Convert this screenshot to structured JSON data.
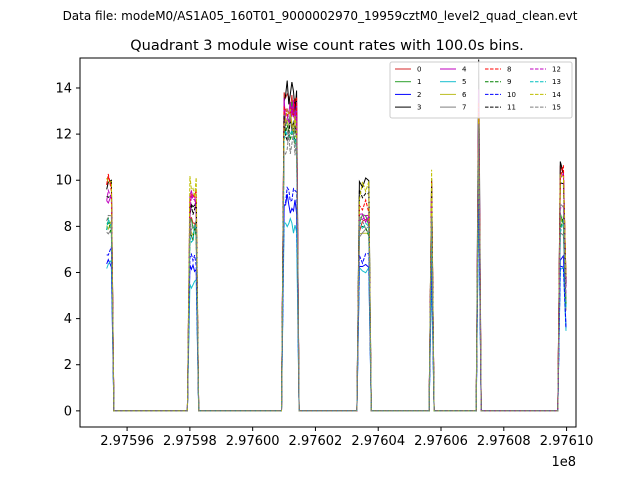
{
  "chart_data": {
    "type": "line",
    "suptitle": "Data file: modeM0/AS1A05_160T01_9000002970_19959cztM0_level2_quad_clean.evt",
    "title": "Quadrant 3 module wise count rates with 100.0s bins.",
    "xlabel": "",
    "ylabel": "",
    "x_offset_label": "1e8",
    "xlim": [
      2.975945,
      2.976103
    ],
    "ylim": [
      -0.7,
      15.3
    ],
    "x_ticks": [
      2.97596,
      2.97598,
      2.976,
      2.97602,
      2.97604,
      2.97606,
      2.97608,
      2.9761
    ],
    "x_tick_labels": [
      "2.97596",
      "2.97598",
      "2.97600",
      "2.97602",
      "2.97604",
      "2.97606",
      "2.97608",
      "2.97610"
    ],
    "y_ticks": [
      0,
      2,
      4,
      6,
      8,
      10,
      12,
      14
    ],
    "y_tick_labels": [
      "0",
      "2",
      "4",
      "6",
      "8",
      "10",
      "12",
      "14"
    ],
    "segments": [
      {
        "start": 2.975954,
        "end": 2.975955,
        "step": 1e-06
      },
      {
        "start": 2.97598,
        "end": 2.975982,
        "step": 5e-07
      },
      {
        "start": 2.97601,
        "end": 2.976014,
        "step": 5e-07
      },
      {
        "start": 2.976034,
        "end": 2.976037,
        "step": 1e-06
      },
      {
        "start": 2.976057,
        "end": 2.976057,
        "step": 1e-06
      },
      {
        "start": 2.976072,
        "end": 2.976072,
        "step": 1e-06
      },
      {
        "start": 2.976098,
        "end": 2.976099,
        "step": 1e-06
      }
    ],
    "legend_position": "top-right",
    "series": [
      {
        "name": "0",
        "color": "#d62728",
        "dash": "solid",
        "levels": [
          10.0,
          8.0,
          13.3,
          8.0,
          10.4,
          12.8,
          10.4
        ]
      },
      {
        "name": "1",
        "color": "#2ca02c",
        "dash": "solid",
        "levels": [
          8.3,
          8.0,
          12.8,
          8.2,
          8.1,
          12.0,
          8.4
        ]
      },
      {
        "name": "2",
        "color": "#0000ff",
        "dash": "solid",
        "levels": [
          6.5,
          6.2,
          9.0,
          6.4,
          6.3,
          9.8,
          6.5
        ]
      },
      {
        "name": "3",
        "color": "#000000",
        "dash": "solid",
        "levels": [
          9.8,
          8.9,
          13.7,
          9.8,
          10.3,
          14.8,
          10.3
        ]
      },
      {
        "name": "4",
        "color": "#bf00bf",
        "dash": "solid",
        "levels": [
          9.3,
          9.2,
          13.0,
          8.6,
          9.6,
          13.5,
          9.8
        ]
      },
      {
        "name": "5",
        "color": "#17becf",
        "dash": "solid",
        "levels": [
          6.3,
          5.6,
          8.0,
          6.1,
          6.0,
          9.3,
          6.3
        ]
      },
      {
        "name": "6",
        "color": "#bcbd22",
        "dash": "solid",
        "levels": [
          8.2,
          7.6,
          12.6,
          8.0,
          8.1,
          12.5,
          8.2
        ]
      },
      {
        "name": "7",
        "color": "#7f7f7f",
        "dash": "solid",
        "levels": [
          7.9,
          7.7,
          12.3,
          7.7,
          8.2,
          12.0,
          7.9
        ]
      },
      {
        "name": "8",
        "color": "#ff0000",
        "dash": "dashed",
        "levels": [
          10.0,
          9.4,
          13.0,
          8.8,
          10.4,
          13.5,
          10.2
        ]
      },
      {
        "name": "9",
        "color": "#008000",
        "dash": "dashed",
        "levels": [
          8.0,
          7.7,
          11.8,
          7.9,
          8.2,
          12.0,
          8.3
        ]
      },
      {
        "name": "10",
        "color": "#0000ff",
        "dash": "dashed",
        "levels": [
          6.9,
          6.5,
          9.3,
          6.6,
          6.4,
          10.3,
          6.5
        ]
      },
      {
        "name": "11",
        "color": "#000000",
        "dash": "dashed",
        "levels": [
          9.5,
          8.9,
          12.3,
          9.3,
          9.9,
          12.6,
          9.8
        ]
      },
      {
        "name": "12",
        "color": "#bf00bf",
        "dash": "dashed",
        "levels": [
          9.3,
          8.9,
          12.6,
          8.3,
          9.3,
          12.4,
          9.2
        ]
      },
      {
        "name": "13",
        "color": "#00bfbf",
        "dash": "dashed",
        "levels": [
          8.0,
          7.7,
          11.6,
          8.0,
          8.0,
          11.9,
          8.1
        ]
      },
      {
        "name": "14",
        "color": "#bfbf00",
        "dash": "dashed",
        "levels": [
          10.3,
          9.7,
          12.5,
          9.6,
          10.3,
          13.0,
          10.6
        ]
      },
      {
        "name": "15",
        "color": "#7f7f7f",
        "dash": "dashed",
        "levels": [
          8.4,
          8.2,
          11.6,
          8.3,
          8.7,
          12.2,
          8.7
        ]
      }
    ]
  }
}
